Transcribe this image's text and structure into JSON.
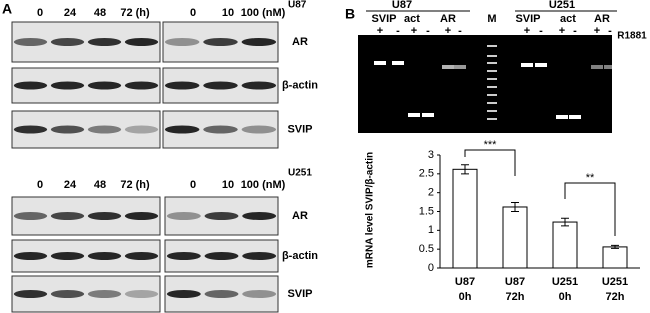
{
  "panel_a": {
    "label": "A",
    "u87": {
      "cell_line": "U87",
      "time_labels": [
        "0",
        "24",
        "48",
        "72 (h)"
      ],
      "dose_labels": [
        "0",
        "10",
        "100 (nM)"
      ],
      "rows": [
        "AR",
        "β-actin",
        "SVIP"
      ]
    },
    "u251": {
      "cell_line": "U251",
      "time_labels": [
        "0",
        "24",
        "48",
        "72 (h)"
      ],
      "dose_labels": [
        "0",
        "10",
        "100 (nM)"
      ],
      "rows": [
        "AR",
        "β-actin",
        "SVIP"
      ]
    }
  },
  "panel_b": {
    "label": "B",
    "gel": {
      "groups": [
        "U87",
        "U251"
      ],
      "lanes": [
        "SVIP",
        "act",
        "AR",
        "M",
        "SVIP",
        "act",
        "AR"
      ],
      "signs": [
        "+",
        "-",
        "+",
        "-",
        "+",
        "-",
        "+",
        "-",
        "+",
        "-",
        "+",
        "-"
      ],
      "treatment": "R1881"
    }
  },
  "chart_data": {
    "type": "bar",
    "y_label": "mRNA level SVIP/β-actin",
    "categories": [
      [
        "U87",
        "0h"
      ],
      [
        "U87",
        "72h"
      ],
      [
        "U251",
        "0h"
      ],
      [
        "U251",
        "72h"
      ]
    ],
    "values": [
      2.62,
      1.62,
      1.22,
      0.56
    ],
    "errors": [
      0.12,
      0.12,
      0.1,
      0.04
    ],
    "color": "#ffffff",
    "ylim": [
      0,
      3
    ],
    "yticks": [
      0,
      0.5,
      1,
      1.5,
      2,
      2.5,
      3
    ],
    "annotations": [
      "***",
      "**"
    ]
  }
}
